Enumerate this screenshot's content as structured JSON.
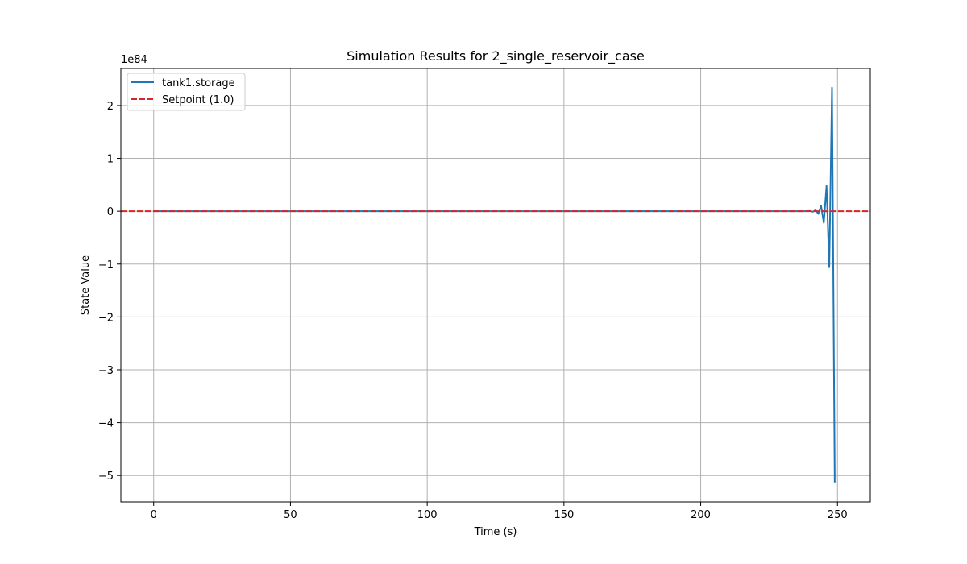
{
  "chart_data": {
    "type": "line",
    "title": "Simulation Results for 2_single_reservoir_case",
    "xlabel": "Time (s)",
    "ylabel": "State Value",
    "y_scale_label": "1e84",
    "xlim": [
      -12,
      262
    ],
    "ylim": [
      -5.5,
      2.7
    ],
    "x_ticks": [
      0,
      50,
      100,
      150,
      200,
      250
    ],
    "y_ticks": [
      -5,
      -4,
      -3,
      -2,
      -1,
      0,
      1,
      2
    ],
    "y_tick_labels": [
      "−5",
      "−4",
      "−3",
      "−2",
      "−1",
      "0",
      "1",
      "2"
    ],
    "grid": true,
    "legend_position": "top-left",
    "series": [
      {
        "name": "tank1.storage",
        "color": "#1f77b4",
        "style": "solid",
        "x": [
          0,
          50,
          100,
          150,
          200,
          238,
          240,
          241,
          242,
          243,
          244,
          245,
          246,
          247,
          248,
          249
        ],
        "y": [
          0,
          0,
          0,
          0,
          0,
          0,
          0.005,
          -0.01,
          0.02,
          -0.05,
          0.1,
          -0.22,
          0.48,
          -1.06,
          2.34,
          -5.13
        ]
      },
      {
        "name": "Setpoint (1.0)",
        "color": "#d62728",
        "style": "dashed",
        "x": [
          -12,
          262
        ],
        "y": [
          0,
          0
        ]
      }
    ]
  }
}
